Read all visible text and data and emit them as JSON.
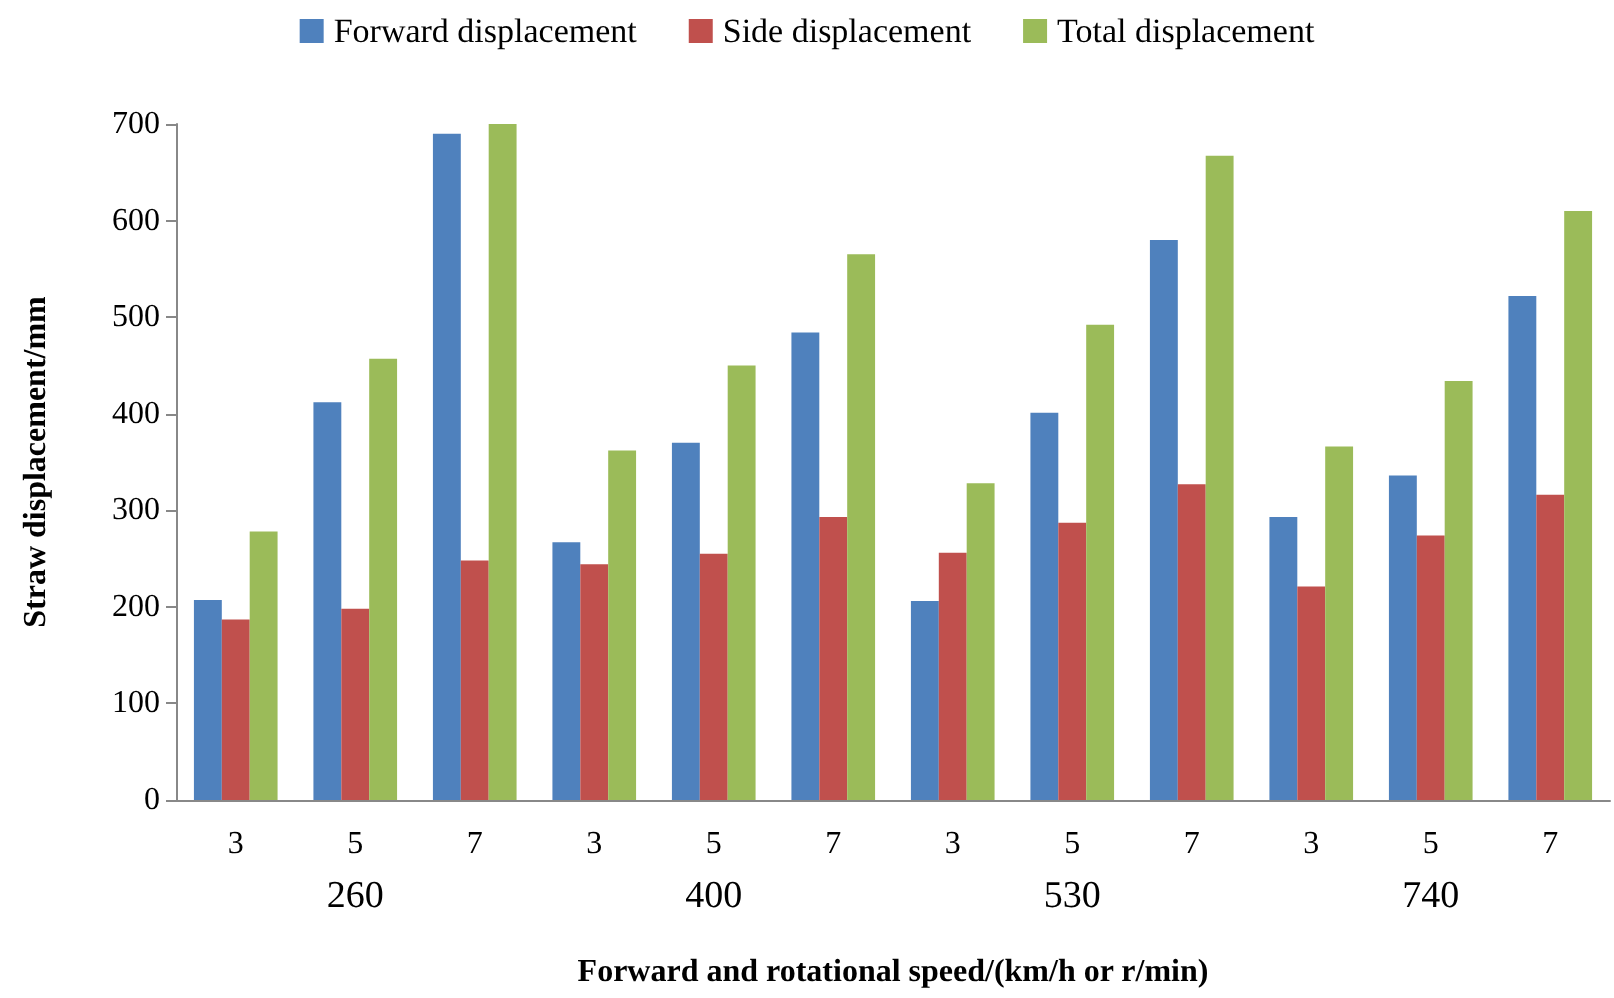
{
  "chart_data": {
    "type": "bar",
    "xlabel": "Forward and rotational speed/(km/h or r/min)",
    "ylabel": "Straw displacement/mm",
    "categories": [
      "3",
      "5",
      "7",
      "3",
      "5",
      "7",
      "3",
      "5",
      "7",
      "3",
      "5",
      "7"
    ],
    "series": [
      {
        "name": "Forward displacement",
        "color": "#4f81bd",
        "values": [
          207,
          412,
          690,
          267,
          370,
          484,
          206,
          401,
          580,
          293,
          336,
          522
        ]
      },
      {
        "name": "Side displacement",
        "color": "#c0504d",
        "values": [
          187,
          198,
          248,
          244,
          255,
          293,
          256,
          287,
          327,
          221,
          274,
          316
        ]
      },
      {
        "name": "Total displacement",
        "color": "#9bbb59",
        "values": [
          278,
          457,
          700,
          362,
          450,
          565,
          328,
          492,
          667,
          366,
          434,
          610
        ]
      }
    ],
    "annotations": [
      "260",
      "400",
      "530",
      "740"
    ],
    "ylim": [
      0,
      700
    ],
    "yticks": [
      0,
      100,
      200,
      300,
      400,
      500,
      600,
      700
    ],
    "grid": false,
    "legend": "top"
  }
}
